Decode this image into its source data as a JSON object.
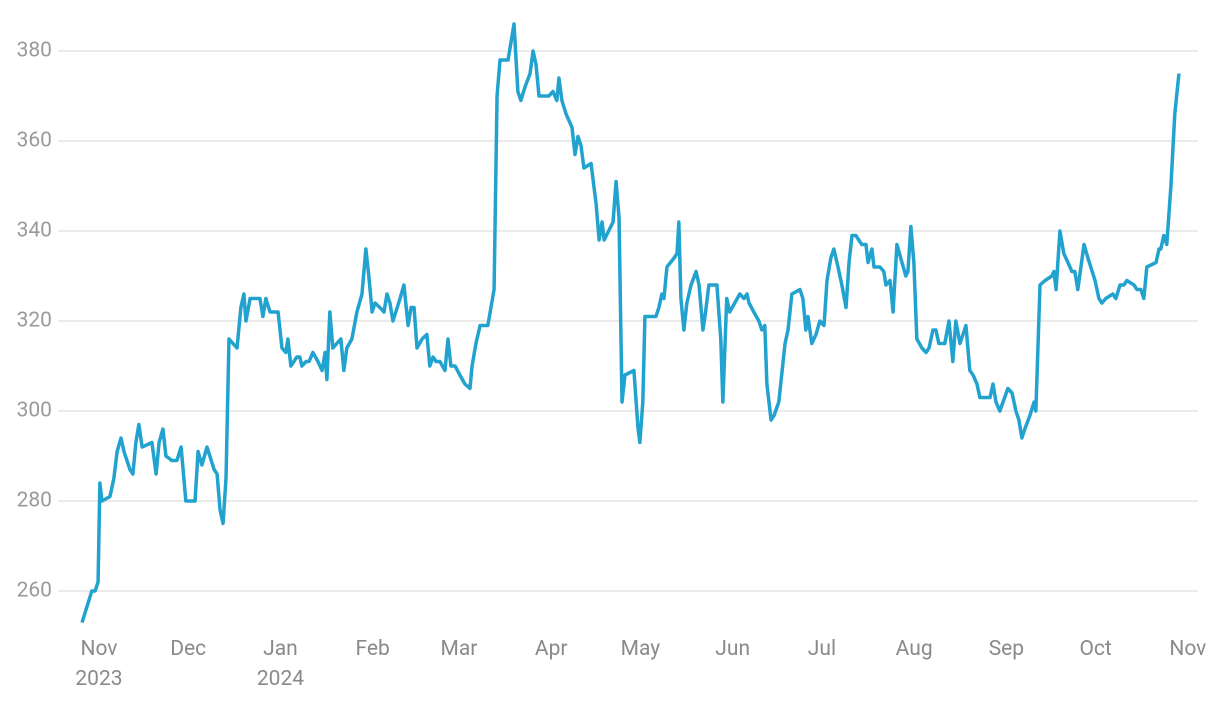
{
  "chart_data": {
    "type": "line",
    "xlim": [
      -13,
      369
    ],
    "ylim": [
      250,
      390
    ],
    "xticks": [
      {
        "value": 0,
        "label": "Nov\n2023"
      },
      {
        "value": 30,
        "label": "Dec"
      },
      {
        "value": 61,
        "label": "Jan\n2024"
      },
      {
        "value": 92,
        "label": "Feb"
      },
      {
        "value": 121,
        "label": "Mar"
      },
      {
        "value": 152,
        "label": "Apr"
      },
      {
        "value": 182,
        "label": "May"
      },
      {
        "value": 213,
        "label": "Jun"
      },
      {
        "value": 243,
        "label": "Jul"
      },
      {
        "value": 274,
        "label": "Aug"
      },
      {
        "value": 305,
        "label": "Sep"
      },
      {
        "value": 335,
        "label": "Oct"
      },
      {
        "value": 366,
        "label": "Nov"
      }
    ],
    "yticks": [
      260,
      280,
      300,
      320,
      340,
      360,
      380
    ],
    "grid": true,
    "series": [
      {
        "color": "#22a2cf",
        "x": [
          -5.7,
          -2.4,
          -1.3,
          -0.3,
          0.3,
          1.0,
          3.7,
          5.0,
          6.1,
          7.4,
          8.4,
          10.4,
          11.4,
          12.4,
          13.4,
          14.5,
          17.8,
          19.2,
          20.2,
          21.5,
          22.5,
          24.5,
          26.2,
          27.6,
          29.2,
          32.3,
          33.3,
          34.6,
          36.3,
          38.7,
          39.7,
          40.7,
          41.7,
          42.7,
          43.7,
          46.4,
          47.7,
          48.7,
          49.4,
          50.8,
          54.1,
          55.1,
          56.1,
          57.5,
          60.2,
          61.5,
          62.8,
          63.5,
          64.5,
          66.5,
          67.5,
          68.2,
          69.6,
          70.6,
          71.9,
          73.6,
          75.0,
          76.0,
          76.6,
          77.6,
          78.6,
          81.3,
          82.3,
          83.3,
          85.0,
          86.7,
          88.4,
          89.7,
          90.7,
          91.8,
          92.8,
          94.4,
          95.8,
          96.8,
          97.8,
          98.8,
          101.2,
          102.5,
          103.9,
          104.9,
          105.9,
          106.9,
          108.6,
          110.2,
          111.2,
          112.3,
          113.3,
          114.6,
          116.3,
          117.3,
          118.3,
          119.7,
          121.3,
          123.0,
          124.7,
          125.4,
          126.7,
          128.1,
          130.7,
          132.8,
          133.8,
          134.8,
          137.5,
          138.5,
          139.5,
          140.8,
          141.8,
          143.2,
          144.9,
          145.9,
          146.9,
          147.9,
          151.2,
          152.6,
          153.9,
          154.6,
          155.6,
          157.0,
          159.0,
          160.0,
          161.0,
          162.0,
          163.0,
          165.4,
          167.1,
          168.1,
          169.1,
          169.8,
          172.8,
          173.8,
          174.8,
          175.8,
          176.8,
          179.8,
          181.2,
          181.8,
          182.8,
          183.5,
          185.9,
          187.2,
          188.2,
          189.2,
          189.9,
          190.9,
          193.3,
          194.3,
          194.9,
          195.6,
          196.6,
          197.6,
          199.0,
          200.7,
          201.7,
          203.0,
          203.7,
          205.0,
          207.7,
          209.0,
          209.7,
          211.0,
          212.0,
          213.7,
          215.4,
          216.8,
          217.8,
          218.5,
          220.1,
          221.8,
          222.8,
          223.8,
          224.5,
          225.9,
          226.9,
          228.5,
          230.6,
          231.6,
          232.9,
          235.6,
          236.6,
          237.6,
          238.3,
          239.6,
          241.0,
          242.3,
          243.7,
          244.7,
          246.0,
          247.0,
          248.4,
          249.7,
          251.1,
          252.1,
          253.1,
          254.4,
          256.4,
          257.8,
          258.5,
          259.8,
          260.5,
          262.5,
          263.8,
          264.5,
          265.9,
          266.9,
          268.2,
          269.9,
          271.2,
          271.9,
          272.9,
          273.9,
          274.9,
          276.6,
          278.0,
          279.0,
          280.3,
          281.3,
          282.3,
          284.3,
          285.7,
          287.0,
          288.0,
          289.4,
          291.4,
          292.7,
          293.8,
          295.1,
          296.1,
          299.5,
          300.5,
          301.5,
          302.8,
          305.5,
          306.9,
          308.2,
          309.2,
          310.2,
          311.2,
          312.9,
          314.3,
          314.9,
          316.3,
          318.0,
          320.3,
          321.0,
          321.7,
          323.0,
          324.3,
          325.7,
          327.0,
          328.0,
          329.0,
          331.1,
          332.4,
          334.8,
          336.1,
          337.1,
          338.4,
          340.8,
          341.8,
          343.2,
          344.5,
          345.5,
          347.9,
          348.9,
          350.2,
          351.2,
          352.2,
          355.3,
          356.3,
          356.9,
          357.9,
          358.9,
          360.3,
          361.6,
          363.0
        ],
        "values": [
          253,
          260,
          260,
          262,
          284,
          280,
          281,
          285,
          291,
          294,
          291,
          287,
          286,
          293,
          297,
          292,
          293,
          286,
          293,
          296,
          290,
          289,
          289,
          292,
          280,
          280,
          291,
          288,
          292,
          287,
          286,
          278,
          275,
          285,
          316,
          314,
          323,
          326,
          320,
          325,
          325,
          321,
          325,
          322,
          322,
          314,
          313,
          316,
          310,
          312,
          312,
          310,
          311,
          311,
          313,
          311,
          309,
          313,
          307,
          322,
          314,
          316,
          309,
          314,
          316,
          322,
          326,
          336,
          330,
          322,
          324,
          323,
          322,
          326,
          324,
          320,
          325,
          328,
          319,
          323,
          323,
          314,
          316,
          317,
          310,
          312,
          311,
          311,
          309,
          316,
          310,
          310,
          308,
          306,
          305,
          310,
          315,
          319,
          319,
          327,
          370,
          378,
          378,
          382,
          386,
          371,
          369,
          372,
          375,
          380,
          377,
          370,
          370,
          371,
          369,
          374,
          369,
          366,
          363,
          357,
          361,
          359,
          354,
          355,
          346,
          338,
          342,
          338,
          342,
          351,
          343,
          302,
          308,
          309,
          296,
          293,
          302,
          321,
          321,
          321,
          323,
          326,
          325,
          332,
          334,
          335,
          342,
          325,
          318,
          324,
          328,
          331,
          328,
          318,
          321,
          328,
          328,
          316,
          302,
          325,
          322,
          324,
          326,
          325,
          326,
          324,
          322,
          320,
          318,
          319,
          306,
          298,
          299,
          302,
          315,
          318,
          326,
          327,
          325,
          318,
          321,
          315,
          317,
          320,
          319,
          329,
          334,
          336,
          332,
          328,
          323,
          333,
          339,
          339,
          337,
          337,
          333,
          336,
          332,
          332,
          331,
          328,
          329,
          322,
          337,
          333,
          330,
          331,
          341,
          333,
          316,
          314,
          313,
          314,
          318,
          318,
          315,
          315,
          320,
          311,
          320,
          315,
          319,
          309,
          308,
          306,
          303,
          303,
          306,
          302,
          300,
          305,
          304,
          300,
          298,
          294,
          296,
          299,
          302,
          300,
          328,
          329,
          330,
          331,
          327,
          340,
          335,
          333,
          331,
          331,
          327,
          337,
          334,
          329,
          325,
          324,
          325,
          326,
          325,
          328,
          328,
          329,
          328,
          327,
          327,
          325,
          332,
          333,
          336,
          336,
          339,
          337,
          350,
          366,
          375
        ]
      }
    ]
  }
}
